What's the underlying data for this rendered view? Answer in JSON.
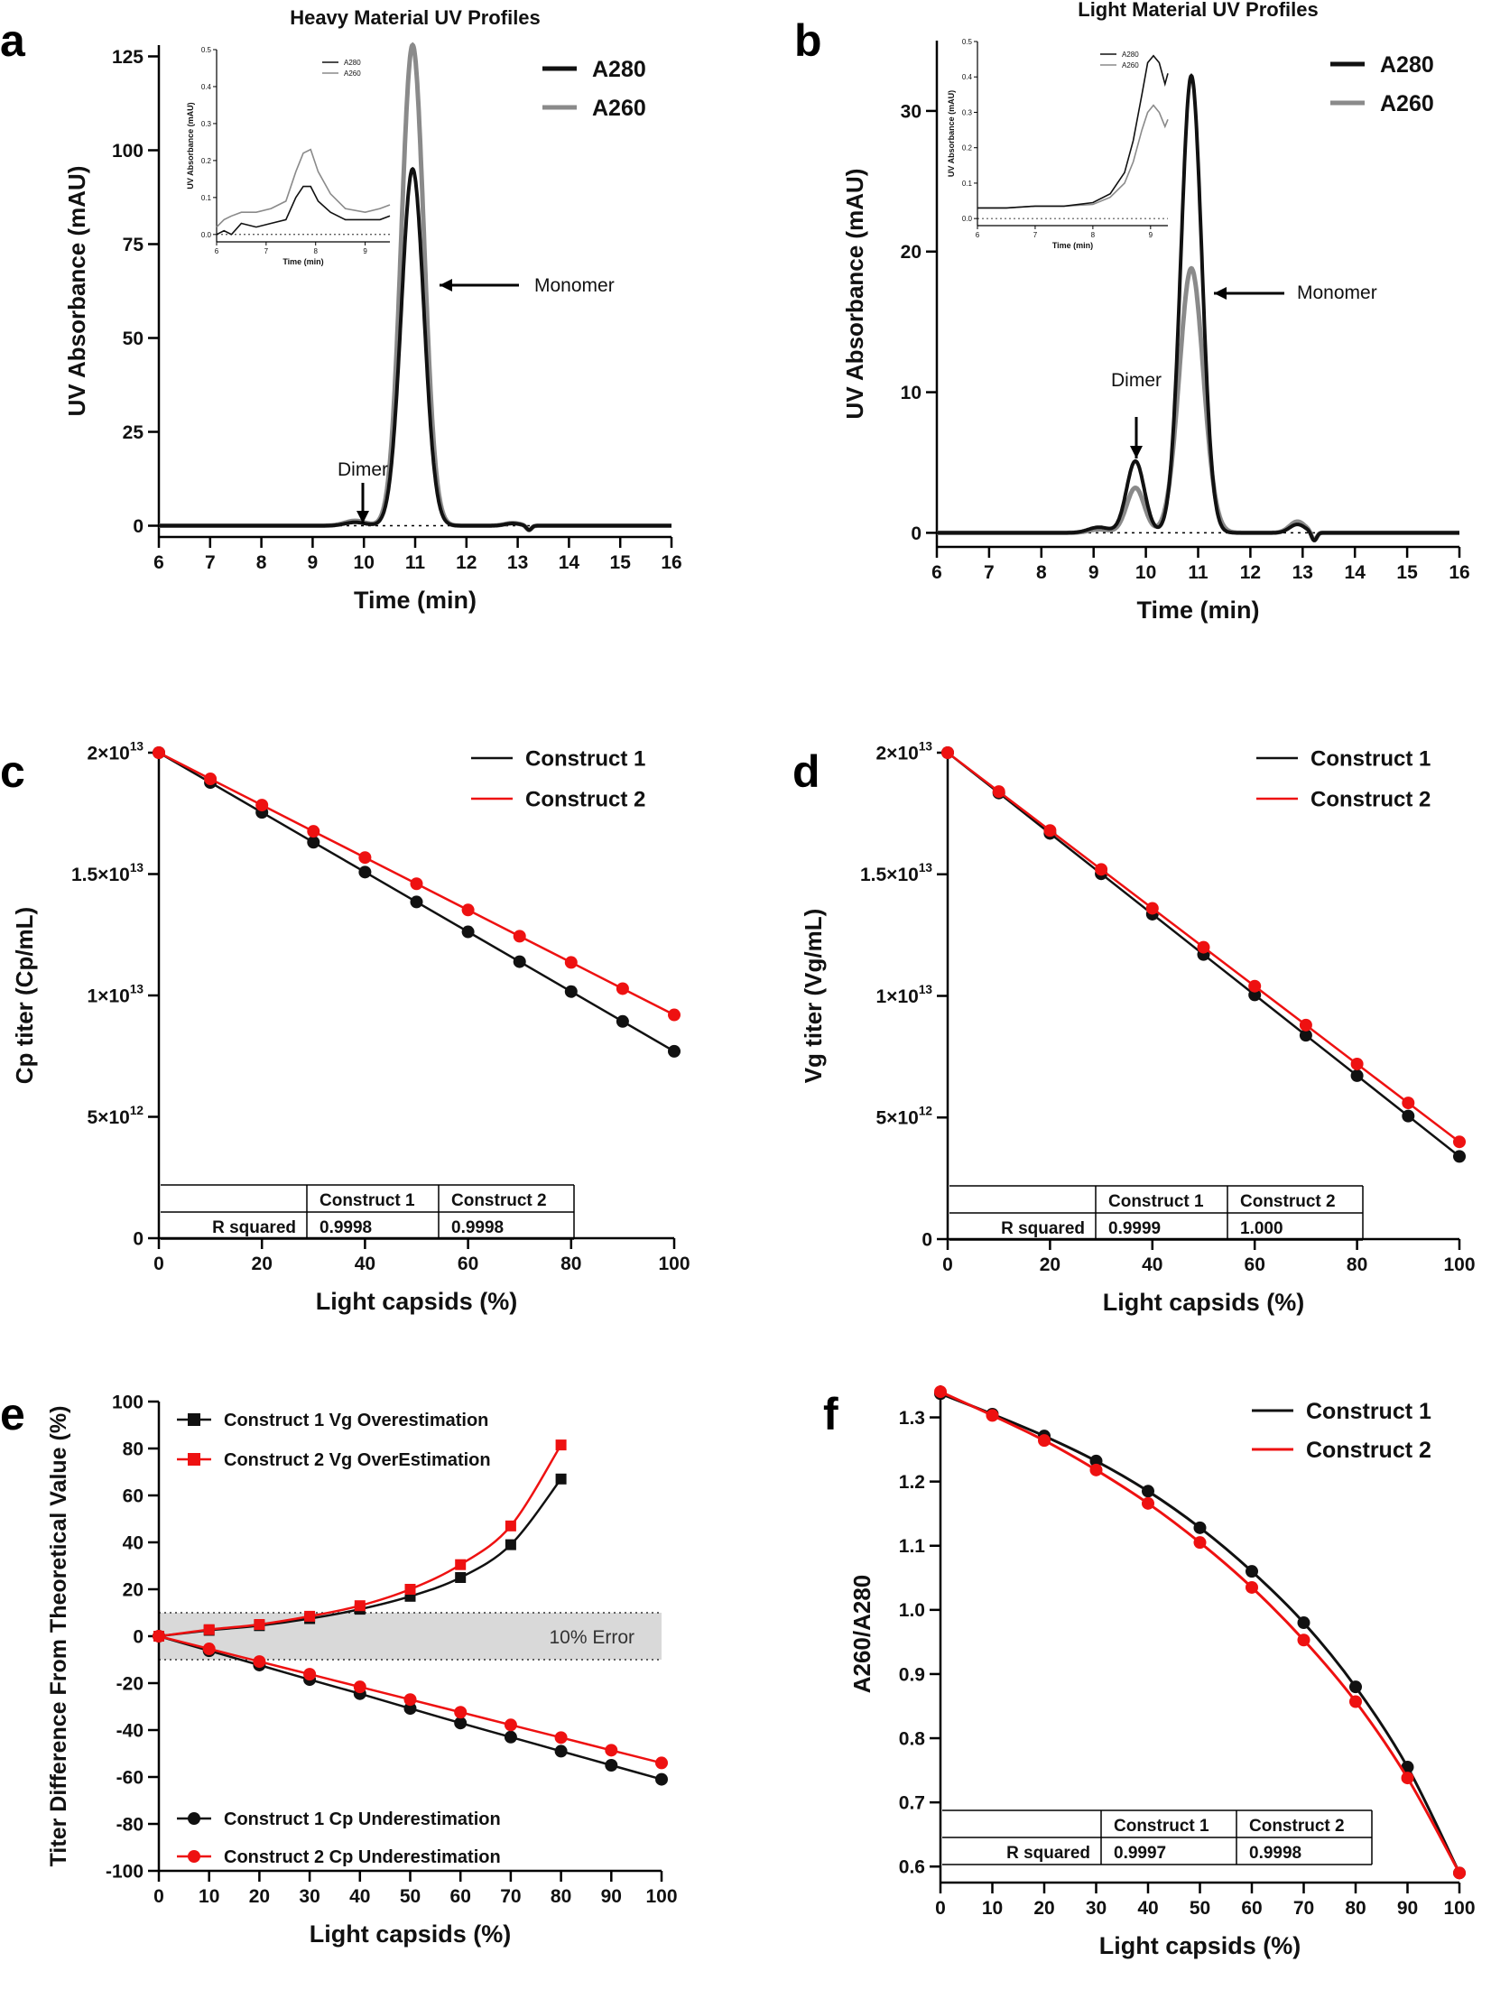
{
  "figure": {
    "colors": {
      "black": "#111111",
      "gray": "#8a8a8a",
      "red": "#ee1111",
      "band": "#d9d9d9"
    }
  },
  "chart_data": [
    {
      "panel": "a",
      "type": "line",
      "title": "Heavy Material UV Profiles",
      "xlabel": "Time (min)",
      "ylabel": "UV Absorbance  (mAU)",
      "xlim": [
        6,
        16
      ],
      "ylim": [
        -3,
        128
      ],
      "xticks": [
        6,
        7,
        8,
        9,
        10,
        11,
        12,
        13,
        14,
        15,
        16
      ],
      "yticks": [
        0,
        25,
        50,
        75,
        100,
        125
      ],
      "legend": [
        "A280",
        "A260"
      ],
      "legend_position": "top-right",
      "peaks": {
        "A280": [
          {
            "center": 9.83,
            "height": 0.9,
            "width": 0.2
          },
          {
            "center": 10.95,
            "height": 95,
            "width": 0.22
          },
          {
            "center": 12.9,
            "height": 0.6,
            "width": 0.15
          },
          {
            "center": 13.22,
            "height": -1.2,
            "width": 0.05
          }
        ],
        "A260": [
          {
            "center": 9.83,
            "height": 1.3,
            "width": 0.2
          },
          {
            "center": 10.95,
            "height": 128,
            "width": 0.22
          },
          {
            "center": 12.9,
            "height": 0.7,
            "width": 0.15
          },
          {
            "center": 13.22,
            "height": -1.2,
            "width": 0.05
          }
        ]
      },
      "annotations": [
        {
          "label": "Monomer",
          "x": 11.1,
          "y": 85
        },
        {
          "label": "Dimer",
          "x": 9.83,
          "y": 2
        }
      ],
      "inset": {
        "xlabel": "Time (min)",
        "ylabel": "UV Absorbance (mAU)",
        "xlim": [
          6,
          9.5
        ],
        "ylim": [
          -0.02,
          0.5
        ],
        "xticks": [
          6,
          7,
          8,
          9
        ],
        "yticks": [
          0.0,
          0.1,
          0.2,
          0.3,
          0.4,
          0.5
        ],
        "legend": [
          "A280",
          "A260"
        ],
        "series": {
          "A280": {
            "x": [
              6.0,
              6.15,
              6.3,
              6.5,
              6.8,
              7.1,
              7.4,
              7.6,
              7.75,
              7.9,
              8.05,
              8.3,
              8.6,
              9.0,
              9.3,
              9.5
            ],
            "y": [
              0.0,
              0.01,
              0.0,
              0.03,
              0.02,
              0.03,
              0.04,
              0.1,
              0.13,
              0.13,
              0.09,
              0.06,
              0.04,
              0.04,
              0.04,
              0.05
            ]
          },
          "A260": {
            "x": [
              6.0,
              6.15,
              6.3,
              6.5,
              6.8,
              7.1,
              7.4,
              7.6,
              7.75,
              7.9,
              8.05,
              8.3,
              8.6,
              9.0,
              9.3,
              9.5
            ],
            "y": [
              0.02,
              0.04,
              0.05,
              0.06,
              0.06,
              0.07,
              0.09,
              0.17,
              0.22,
              0.23,
              0.17,
              0.11,
              0.07,
              0.06,
              0.07,
              0.08
            ]
          }
        }
      }
    },
    {
      "panel": "b",
      "type": "line",
      "title": "Light Material UV Profiles",
      "xlabel": "Time (min)",
      "ylabel": "UV Absorbance  (mAU)",
      "xlim": [
        6,
        16
      ],
      "ylim": [
        -1,
        35
      ],
      "xticks": [
        6,
        7,
        8,
        9,
        10,
        11,
        12,
        13,
        14,
        15,
        16
      ],
      "yticks": [
        0,
        10,
        20,
        30
      ],
      "legend": [
        "A280",
        "A260"
      ],
      "legend_position": "top-right",
      "peaks": {
        "A280": [
          {
            "center": 9.1,
            "height": 0.4,
            "width": 0.2
          },
          {
            "center": 9.8,
            "height": 5.1,
            "width": 0.17
          },
          {
            "center": 10.87,
            "height": 32.5,
            "width": 0.2
          },
          {
            "center": 12.9,
            "height": 0.6,
            "width": 0.15
          },
          {
            "center": 13.22,
            "height": -0.6,
            "width": 0.05
          }
        ],
        "A260": [
          {
            "center": 9.1,
            "height": 0.25,
            "width": 0.2
          },
          {
            "center": 9.8,
            "height": 3.2,
            "width": 0.17
          },
          {
            "center": 10.87,
            "height": 18.8,
            "width": 0.23
          },
          {
            "center": 12.9,
            "height": 0.8,
            "width": 0.15
          },
          {
            "center": 13.22,
            "height": -0.6,
            "width": 0.05
          }
        ]
      },
      "annotations": [
        {
          "label": "Monomer",
          "x": 11.0,
          "y": 17.5
        },
        {
          "label": "Dimer",
          "x": 9.8,
          "y": 5.5
        }
      ],
      "inset": {
        "xlabel": "Time (min)",
        "ylabel": "UV Absorbance (mAU)",
        "xlim": [
          6,
          9.3
        ],
        "ylim": [
          -0.02,
          0.5
        ],
        "xticks": [
          6,
          7,
          8,
          9
        ],
        "yticks": [
          0.0,
          0.1,
          0.2,
          0.3,
          0.4,
          0.5
        ],
        "legend": [
          "A280",
          "A260"
        ],
        "series": {
          "A280": {
            "x": [
              6.0,
              6.5,
              7.0,
              7.5,
              8.0,
              8.3,
              8.55,
              8.7,
              8.85,
              8.95,
              9.05,
              9.15,
              9.25,
              9.3
            ],
            "y": [
              0.03,
              0.03,
              0.035,
              0.035,
              0.045,
              0.07,
              0.13,
              0.22,
              0.35,
              0.44,
              0.46,
              0.44,
              0.38,
              0.41
            ]
          },
          "A260": {
            "x": [
              6.0,
              6.5,
              7.0,
              7.5,
              8.0,
              8.3,
              8.55,
              8.7,
              8.85,
              8.95,
              9.05,
              9.15,
              9.25,
              9.3
            ],
            "y": [
              0.03,
              0.03,
              0.035,
              0.035,
              0.04,
              0.06,
              0.1,
              0.16,
              0.25,
              0.3,
              0.32,
              0.3,
              0.26,
              0.28
            ]
          }
        }
      }
    },
    {
      "panel": "c",
      "type": "line",
      "xlabel": "Light capsids (%)",
      "ylabel": "Cp titer (Cp/mL)",
      "xlim": [
        0,
        100
      ],
      "ylim": [
        0,
        20000000000000.0
      ],
      "xticks": [
        0,
        20,
        40,
        60,
        80,
        100
      ],
      "yticks": [
        0,
        5000000000000.0,
        10000000000000.0,
        15000000000000.0,
        20000000000000.0
      ],
      "ytick_labels": [
        {
          "mant": "0",
          "exp": ""
        },
        {
          "mant": "5×10",
          "exp": "12"
        },
        {
          "mant": "1×10",
          "exp": "13"
        },
        {
          "mant": "1.5×10",
          "exp": "13"
        },
        {
          "mant": "2×10",
          "exp": "13"
        }
      ],
      "x": [
        0,
        10,
        20,
        30,
        40,
        50,
        60,
        70,
        80,
        90,
        100
      ],
      "series": [
        {
          "name": "Construct 1",
          "color": "black",
          "values": [
            20000000000000.0,
            18770000000000.0,
            17540000000000.0,
            16310000000000.0,
            15080000000000.0,
            13850000000000.0,
            12620000000000.0,
            11390000000000.0,
            10160000000000.0,
            8930000000000.0,
            7700000000000.0
          ]
        },
        {
          "name": "Construct 2",
          "color": "red",
          "values": [
            20000000000000.0,
            18920000000000.0,
            17840000000000.0,
            16760000000000.0,
            15680000000000.0,
            14600000000000.0,
            13520000000000.0,
            12440000000000.0,
            11360000000000.0,
            10280000000000.0,
            9200000000000.0
          ]
        }
      ],
      "table": {
        "columns": [
          "",
          "Construct 1",
          "Construct 2"
        ],
        "rows": [
          [
            "R squared",
            "0.9998",
            "0.9998"
          ]
        ]
      }
    },
    {
      "panel": "d",
      "type": "line",
      "xlabel": "Light capsids (%)",
      "ylabel": "Vg titer  (Vg/mL)",
      "xlim": [
        0,
        100
      ],
      "ylim": [
        0,
        20000000000000.0
      ],
      "xticks": [
        0,
        20,
        40,
        60,
        80,
        100
      ],
      "yticks": [
        0,
        5000000000000.0,
        10000000000000.0,
        15000000000000.0,
        20000000000000.0
      ],
      "ytick_labels": [
        {
          "mant": "0",
          "exp": ""
        },
        {
          "mant": "5×10",
          "exp": "12"
        },
        {
          "mant": "1×10",
          "exp": "13"
        },
        {
          "mant": "1.5×10",
          "exp": "13"
        },
        {
          "mant": "2×10",
          "exp": "13"
        }
      ],
      "x": [
        0,
        10,
        20,
        30,
        40,
        50,
        60,
        70,
        80,
        90,
        100
      ],
      "series": [
        {
          "name": "Construct 1",
          "color": "black",
          "values": [
            20000000000000.0,
            18340000000000.0,
            16680000000000.0,
            15020000000000.0,
            13360000000000.0,
            11700000000000.0,
            10040000000000.0,
            8380000000000.0,
            6720000000000.0,
            5060000000000.0,
            3400000000000.0
          ]
        },
        {
          "name": "Construct 2",
          "color": "red",
          "values": [
            20000000000000.0,
            18400000000000.0,
            16800000000000.0,
            15200000000000.0,
            13600000000000.0,
            12000000000000.0,
            10400000000000.0,
            8800000000000.0,
            7200000000000.0,
            5600000000000.0,
            4000000000000.0
          ]
        }
      ],
      "table": {
        "columns": [
          "",
          "Construct 1",
          "Construct 2"
        ],
        "rows": [
          [
            "R squared",
            "0.9999",
            "1.000"
          ]
        ]
      }
    },
    {
      "panel": "e",
      "type": "line",
      "xlabel": "Light capsids (%)",
      "ylabel": "Titer Difference From Theoretical Value (%)",
      "xlim": [
        0,
        100
      ],
      "ylim": [
        -100,
        100
      ],
      "xticks": [
        0,
        10,
        20,
        30,
        40,
        50,
        60,
        70,
        80,
        90,
        100
      ],
      "yticks": [
        -100,
        -80,
        -60,
        -40,
        -20,
        0,
        20,
        40,
        60,
        80,
        100
      ],
      "band": {
        "low": -10,
        "high": 10,
        "label": "10% Error"
      },
      "series": [
        {
          "name": "Construct 1 Vg Overestimation",
          "color": "black",
          "marker": "square",
          "x": [
            0,
            10,
            20,
            30,
            40,
            50,
            60,
            70,
            80
          ],
          "values": [
            0,
            2.5,
            4.5,
            7.5,
            11.5,
            17,
            25,
            39,
            67
          ]
        },
        {
          "name": "Construct 2 Vg OverEstimation",
          "color": "red",
          "marker": "square",
          "x": [
            0,
            10,
            20,
            30,
            40,
            50,
            60,
            70,
            80
          ],
          "values": [
            0,
            2.8,
            5,
            8.5,
            13,
            20,
            30.5,
            47,
            81.5
          ]
        },
        {
          "name": "Construct 1 Cp Underestimation",
          "color": "black",
          "marker": "circle",
          "x": [
            0,
            10,
            20,
            30,
            40,
            50,
            60,
            70,
            80,
            90,
            100
          ],
          "values": [
            0,
            -6.2,
            -12.3,
            -18.5,
            -24.5,
            -30.8,
            -37,
            -43,
            -49,
            -55,
            -61
          ]
        },
        {
          "name": "Construct 2 Cp Underestimation",
          "color": "red",
          "marker": "circle",
          "x": [
            0,
            10,
            20,
            30,
            40,
            50,
            60,
            70,
            80,
            90,
            100
          ],
          "values": [
            0,
            -5.4,
            -10.8,
            -16.2,
            -21.6,
            -27,
            -32.4,
            -37.8,
            -43.2,
            -48.6,
            -54
          ]
        }
      ]
    },
    {
      "panel": "f",
      "type": "line",
      "xlabel": "Light capsids (%)",
      "ylabel": "A260/A280",
      "xlim": [
        0,
        100
      ],
      "ylim": [
        0.575,
        1.35
      ],
      "xticks": [
        0,
        10,
        20,
        30,
        40,
        50,
        60,
        70,
        80,
        90,
        100
      ],
      "yticks": [
        0.6,
        0.7,
        0.8,
        0.9,
        1.0,
        1.1,
        1.2,
        1.3
      ],
      "x": [
        0,
        10,
        20,
        30,
        40,
        50,
        60,
        70,
        80,
        90,
        100
      ],
      "series": [
        {
          "name": "Construct 1",
          "color": "black",
          "values": [
            1.337,
            1.305,
            1.271,
            1.232,
            1.185,
            1.128,
            1.06,
            0.98,
            0.88,
            0.755,
            0.59
          ]
        },
        {
          "name": "Construct 2",
          "color": "red",
          "values": [
            1.34,
            1.303,
            1.264,
            1.218,
            1.166,
            1.105,
            1.035,
            0.953,
            0.857,
            0.738,
            0.59
          ]
        }
      ],
      "table": {
        "columns": [
          "",
          "Construct 1",
          "Construct 2"
        ],
        "rows": [
          [
            "R squared",
            "0.9997",
            "0.9998"
          ]
        ]
      }
    }
  ]
}
